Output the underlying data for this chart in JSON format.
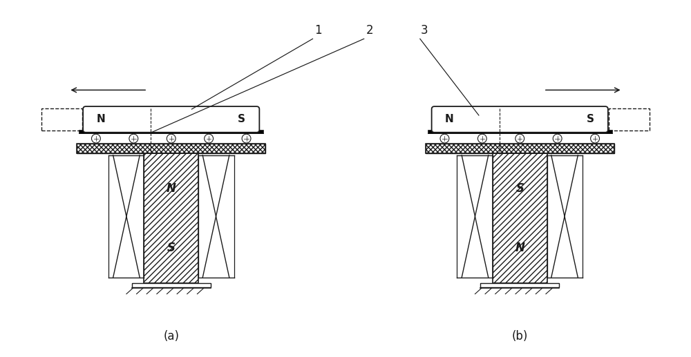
{
  "bg_color": "#ffffff",
  "line_color": "#1a1a1a",
  "fig_width": 10.0,
  "fig_height": 5.17,
  "label_a": "(a)",
  "label_b": "(b)",
  "ref1": "1",
  "ref2": "2",
  "ref3": "3"
}
